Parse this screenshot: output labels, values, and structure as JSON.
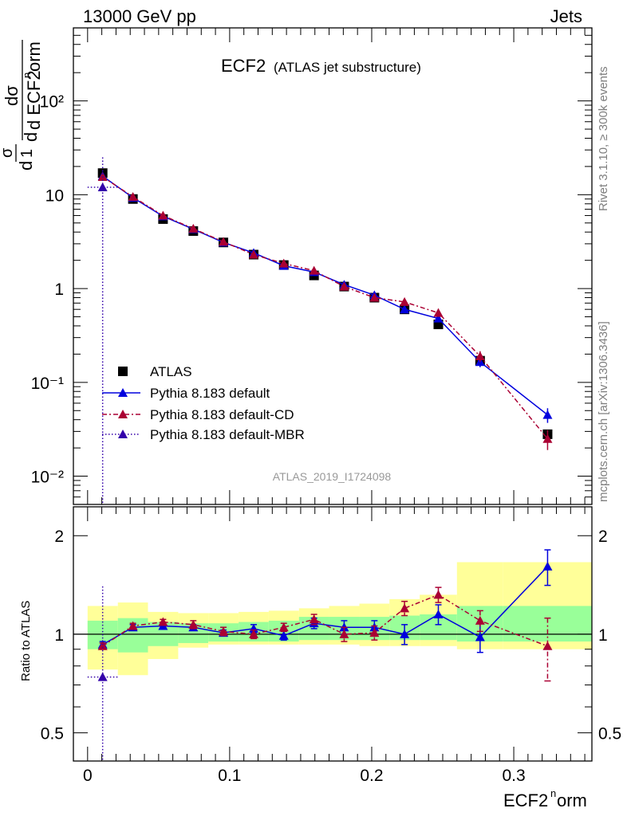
{
  "header": {
    "left_title": "13000 GeV pp",
    "right_title": "Jets"
  },
  "side_labels": {
    "rivet": "Rivet 3.1.10, ≥ 300k events",
    "mcplots": "mcplots.cern.ch [arXiv:1306.3436]"
  },
  "analysis_id": "ATLAS_2019_I1724098",
  "colors": {
    "atlas": "#000000",
    "default": "#0000dd",
    "default_cd": "#aa0033",
    "default_mbr": "#3300aa",
    "band_inner": "#99ff99",
    "band_outer": "#ffff99"
  },
  "chart_data": [
    {
      "type": "scatter",
      "panel": "main",
      "title": "ECF2",
      "subtitle": "(ATLAS jet substructure)",
      "ylabel": "1/σ dσ/d ECF2norm",
      "yscale": "log",
      "xlim": [
        -0.01,
        0.355
      ],
      "ylim": [
        0.005,
        600
      ],
      "ytick_labels": [
        "10⁻²",
        "10⁻¹",
        "1",
        "10",
        "10²"
      ],
      "ytick_values": [
        0.01,
        0.1,
        1,
        10,
        100
      ],
      "legend_position": "bottom-left",
      "x": [
        0.0106,
        0.0319,
        0.0531,
        0.0744,
        0.0956,
        0.1169,
        0.1381,
        0.1594,
        0.1806,
        0.2019,
        0.2231,
        0.2469,
        0.2763,
        0.3238
      ],
      "xerr": [
        0.0106,
        0.0106,
        0.0106,
        0.0106,
        0.0106,
        0.0106,
        0.0106,
        0.0106,
        0.0106,
        0.0106,
        0.0106,
        0.0131,
        0.0163,
        0.0313
      ],
      "series": [
        {
          "name": "ATLAS",
          "style": "markers",
          "values": [
            17.0,
            9.0,
            5.5,
            4.1,
            3.1,
            2.3,
            1.78,
            1.38,
            1.05,
            0.8,
            0.6,
            0.415,
            0.17,
            0.028
          ]
        },
        {
          "name": "Pythia 8.183 default",
          "style": "solid",
          "values": [
            15.8,
            9.3,
            5.9,
            4.3,
            3.1,
            2.4,
            1.75,
            1.5,
            1.1,
            0.85,
            0.6,
            0.48,
            0.165,
            0.045
          ],
          "errors": [
            0,
            0,
            0,
            0,
            0,
            0,
            0,
            0,
            0,
            0,
            0.04,
            0.03,
            0.02,
            0.008
          ]
        },
        {
          "name": "Pythia 8.183 default-CD",
          "style": "dashdot",
          "values": [
            15.5,
            9.5,
            6.0,
            4.35,
            3.15,
            2.3,
            1.85,
            1.55,
            1.05,
            0.8,
            0.72,
            0.55,
            0.19,
            0.025
          ],
          "errors": [
            0,
            0,
            0,
            0,
            0,
            0,
            0,
            0,
            0,
            0,
            0,
            0.03,
            0.025,
            0.006
          ]
        },
        {
          "name": "Pythia 8.183 default-MBR",
          "style": "dotted",
          "values": [
            12.0
          ],
          "errors": [
            13.0
          ]
        }
      ]
    },
    {
      "type": "scatter",
      "panel": "ratio",
      "ylabel": "Ratio to ATLAS",
      "xlabel": "ECF2norm",
      "ylim": [
        0.41,
        2.45
      ],
      "yscale": "log",
      "ytick_labels": [
        "0.5",
        "1",
        "2"
      ],
      "ytick_values": [
        0.5,
        1,
        2
      ],
      "xtick_labels": [
        "0",
        "0.1",
        "0.2",
        "0.3"
      ],
      "xtick_values": [
        0,
        0.1,
        0.2,
        0.3
      ],
      "band_edges": [
        0,
        0.0213,
        0.0425,
        0.0638,
        0.085,
        0.1063,
        0.1275,
        0.1488,
        0.17,
        0.1913,
        0.2125,
        0.2338,
        0.26,
        0.2925,
        0.355
      ],
      "band_inner_lo": [
        0.9,
        0.88,
        0.92,
        0.94,
        0.95,
        0.95,
        0.95,
        0.96,
        0.96,
        0.96,
        0.96,
        0.96,
        0.95,
        0.95
      ],
      "band_inner_hi": [
        1.1,
        1.12,
        1.09,
        1.08,
        1.08,
        1.09,
        1.1,
        1.13,
        1.13,
        1.13,
        1.14,
        1.15,
        1.22,
        1.22
      ],
      "band_outer_lo": [
        0.78,
        0.75,
        0.84,
        0.91,
        0.93,
        0.93,
        0.93,
        0.93,
        0.93,
        0.92,
        0.92,
        0.92,
        0.9,
        0.9
      ],
      "band_outer_hi": [
        1.22,
        1.25,
        1.17,
        1.16,
        1.16,
        1.17,
        1.18,
        1.2,
        1.22,
        1.24,
        1.28,
        1.32,
        1.66,
        1.66
      ],
      "x": [
        0.0106,
        0.0319,
        0.0531,
        0.0744,
        0.0956,
        0.1169,
        0.1381,
        0.1594,
        0.1806,
        0.2019,
        0.2231,
        0.2469,
        0.2763,
        0.3238
      ],
      "series": [
        {
          "name": "Pythia 8.183 default",
          "style": "solid",
          "values": [
            0.93,
            1.05,
            1.06,
            1.05,
            1.01,
            1.04,
            0.99,
            1.08,
            1.05,
            1.05,
            1.0,
            1.15,
            0.98,
            1.61
          ],
          "errors": [
            0.02,
            0.02,
            0.02,
            0.02,
            0.02,
            0.03,
            0.03,
            0.04,
            0.05,
            0.05,
            0.07,
            0.08,
            0.1,
            0.2
          ]
        },
        {
          "name": "Pythia 8.183 default-CD",
          "style": "dashdot",
          "values": [
            0.92,
            1.06,
            1.09,
            1.07,
            1.02,
            1.0,
            1.05,
            1.11,
            1.0,
            1.01,
            1.2,
            1.32,
            1.1,
            0.92
          ],
          "errors": [
            0.02,
            0.02,
            0.02,
            0.03,
            0.03,
            0.03,
            0.03,
            0.04,
            0.05,
            0.05,
            0.06,
            0.07,
            0.08,
            0.2
          ]
        },
        {
          "name": "Pythia 8.183 default-MBR",
          "style": "dotted",
          "values": [
            0.74
          ],
          "errors": [
            0.66
          ]
        }
      ]
    }
  ]
}
